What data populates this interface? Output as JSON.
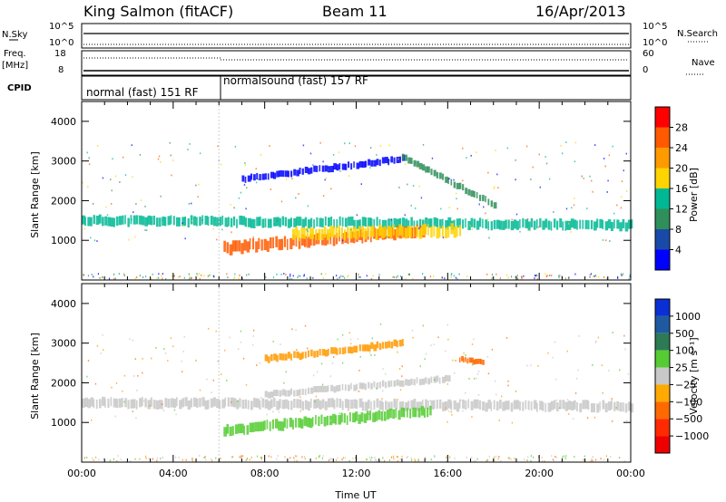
{
  "header": {
    "station": "King Salmon (fitACF)",
    "beam": "Beam 11",
    "date": "16/Apr/2013"
  },
  "summary": {
    "nsky_label": "N.Sky",
    "nsearch_label": "N.Search",
    "freq_label_1": "Freq.",
    "freq_label_2": "[MHz]",
    "nave_label": "Nave",
    "cpid_label": "CPID",
    "left_top_ticks": [
      "10^5",
      "10^0"
    ],
    "right_top_ticks": [
      "10^5",
      "10^0"
    ],
    "left_freq_ticks": [
      "18",
      "8"
    ],
    "right_nave_ticks": [
      "60",
      "0"
    ],
    "modes": [
      {
        "label": "normal (fast) 151 RF",
        "start_hour": 0,
        "end_hour": 6
      },
      {
        "label": "normalsound (fast) 157 RF",
        "start_hour": 6,
        "end_hour": 24
      }
    ]
  },
  "panels": {
    "ylabel": "Slant Range [km]",
    "xlabel": "Time UT",
    "yticks": [
      "4000",
      "3000",
      "2000",
      "1000"
    ],
    "xticks": [
      "00:00",
      "04:00",
      "08:00",
      "12:00",
      "16:00",
      "20:00",
      "00:00"
    ],
    "power_colorbar": {
      "label": "Power [dB]",
      "ticks": [
        "28",
        "24",
        "20",
        "16",
        "12",
        "8",
        "4"
      ],
      "colors": [
        "#ff0000",
        "#ff5a00",
        "#ff9a00",
        "#ffd400",
        "#00b894",
        "#2f8f5a",
        "#1a4aa8",
        "#0000ff"
      ]
    },
    "velocity_colorbar": {
      "label": "Velocity [m s⁻¹]",
      "ticks": [
        "1000",
        "500",
        "100",
        "25",
        "−25",
        "−100",
        "−500",
        "−1000"
      ],
      "colors": [
        "#0a2fd4",
        "#1f5aa0",
        "#2d7a55",
        "#55cc33",
        "#c8c8c8",
        "#ffaa00",
        "#ff6a00",
        "#ff2a00",
        "#ee0000"
      ]
    }
  },
  "chart_data": [
    {
      "type": "heatmap",
      "name": "Power",
      "x_range": [
        0,
        24
      ],
      "y_range": [
        0,
        4500
      ],
      "bands": [
        {
          "start": 0,
          "end": 24,
          "center_start": 1500,
          "center_end": 1380,
          "width": 230,
          "color": "#00b894"
        },
        {
          "start": 6.2,
          "end": 15.0,
          "center_start": 800,
          "center_end": 1250,
          "width": 280,
          "color": "#ff5a00"
        },
        {
          "start": 9.2,
          "end": 16.5,
          "center_start": 1150,
          "center_end": 1250,
          "width": 280,
          "color": "#ffd400"
        },
        {
          "start": 7.0,
          "end": 14.0,
          "center_start": 2550,
          "center_end": 3050,
          "width": 160,
          "color": "#0000ff"
        },
        {
          "start": 14.0,
          "end": 18.0,
          "center_start": 3100,
          "center_end": 1900,
          "width": 160,
          "color": "#2f8f5a"
        }
      ],
      "speckle_range": [
        1000,
        3500
      ]
    },
    {
      "type": "heatmap",
      "name": "Velocity",
      "x_range": [
        0,
        24
      ],
      "y_range": [
        0,
        4500
      ],
      "bands": [
        {
          "start": 0,
          "end": 24,
          "center_start": 1500,
          "center_end": 1400,
          "width": 230,
          "color": "#c8c8c8"
        },
        {
          "start": 6.2,
          "end": 15.2,
          "center_start": 800,
          "center_end": 1300,
          "width": 240,
          "color": "#55cc33"
        },
        {
          "start": 8.0,
          "end": 16.0,
          "center_start": 1700,
          "center_end": 2100,
          "width": 160,
          "color": "#c8c8c8"
        },
        {
          "start": 8.0,
          "end": 14.0,
          "center_start": 2600,
          "center_end": 3000,
          "width": 170,
          "color": "#ff9a00"
        },
        {
          "start": 16.5,
          "end": 17.5,
          "center_start": 2600,
          "center_end": 2500,
          "width": 130,
          "color": "#ff6a00"
        }
      ],
      "speckle_range": [
        1000,
        3500
      ]
    }
  ]
}
